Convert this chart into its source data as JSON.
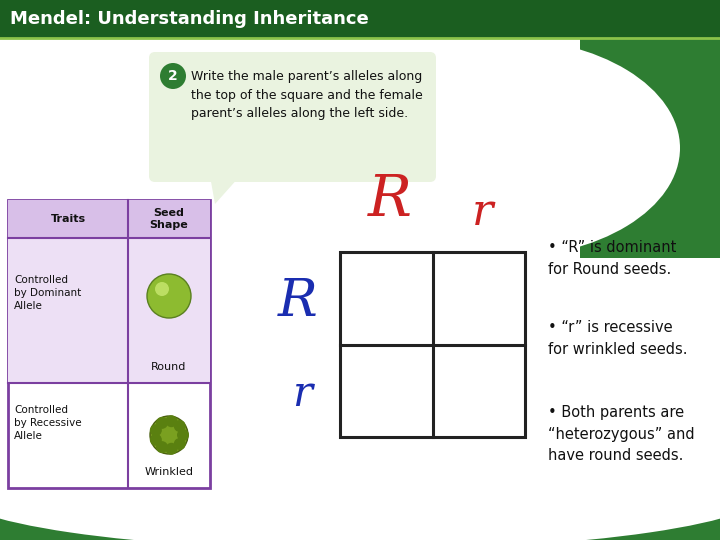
{
  "title": "Mendel: Understanding Inheritance",
  "title_bg": "#1b5e20",
  "title_fg": "#ffffff",
  "slide_bg": "#ffffff",
  "bg_top": "#ffffff",
  "bg_green_dark": "#2e7d32",
  "callout_bg": "#eaf3e0",
  "callout_border": "#b0cc90",
  "callout_number_bg": "#2e7d32",
  "callout_text": "Write the male parent’s alleles along\nthe top of the square and the female\nparent’s alleles along the left side.",
  "table_header_bg": "#d8bfe8",
  "table_row_bg": "#ede0f5",
  "table_border": "#7b3fa0",
  "table_col1": "Traits",
  "table_col2": "Seed\nShape",
  "table_row1_label": "Controlled\nby Dominant\nAllele",
  "table_row1_seed": "Round",
  "table_row2_label": "Controlled\nby Recessive\nAllele",
  "table_row2_seed": "Wrinkled",
  "male_allele_R": "R",
  "male_allele_r": "r",
  "female_allele_R": "R",
  "female_allele_r": "r",
  "allele_color_red": "#cc2222",
  "allele_color_blue": "#1a2db0",
  "bullet1": "• “R” is dominant\nfor Round seeds.",
  "bullet2": "• “r” is recessive\nfor wrinkled seeds.",
  "bullet3": "• Both parents are\n“heterozygous” and\nhave round seeds.",
  "bullet_color": "#111111",
  "punnett_border": "#222222"
}
